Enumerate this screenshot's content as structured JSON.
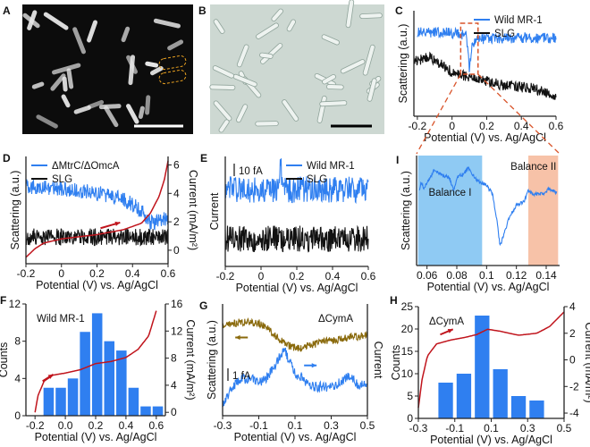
{
  "colors": {
    "blue": "#2f7ff0",
    "black": "#111111",
    "red": "#c0141c",
    "brown": "#8a6a0c",
    "bar": "#2f7ff0",
    "balance1": "#8fcaf3",
    "balance2": "#f7c2a8",
    "zoom_box": "#d9542a"
  },
  "chart_data": [
    {
      "panel": "A",
      "type": "image",
      "letter": "A",
      "background": "dark-field",
      "scale_bar": true,
      "highlight": "dashed-orange-outline"
    },
    {
      "panel": "B",
      "type": "image",
      "letter": "B",
      "background": "bright-field",
      "scale_bar": true
    },
    {
      "panel": "C",
      "type": "line",
      "letter": "C",
      "xlabel": "Potential (V) vs. Ag/AgCl",
      "ylabel": "Scattering (a.u.)",
      "xlim": [
        -0.22,
        0.6
      ],
      "xticks": [
        -0.2,
        0,
        0.2,
        0.4,
        0.6
      ],
      "xtick_labels": [
        "-0.2",
        "0",
        "0.2",
        "0.4",
        "0.6"
      ],
      "ylim": [
        0,
        10
      ],
      "legend": "top-right",
      "zoom_region_x": [
        0.05,
        0.15
      ],
      "series": [
        {
          "name": "Wild MR-1",
          "color": "blue",
          "noise": 0.5,
          "points": [
            [
              -0.2,
              8.0
            ],
            [
              0.0,
              7.9
            ],
            [
              0.08,
              7.7
            ],
            [
              0.095,
              6.0
            ],
            [
              0.1,
              3.8
            ],
            [
              0.11,
              6.2
            ],
            [
              0.13,
              7.3
            ],
            [
              0.3,
              7.4
            ],
            [
              0.6,
              7.4
            ]
          ]
        },
        {
          "name": "SLG",
          "color": "black",
          "noise": 0.5,
          "points": [
            [
              -0.22,
              5.2
            ],
            [
              -0.13,
              5.6
            ],
            [
              0.0,
              4.2
            ],
            [
              0.1,
              3.7
            ],
            [
              0.3,
              2.9
            ],
            [
              0.45,
              2.7
            ],
            [
              0.6,
              2.0
            ]
          ]
        }
      ]
    },
    {
      "panel": "D",
      "type": "line",
      "letter": "D",
      "xlabel": "Potential (V) vs. Ag/AgCl",
      "ylabel": "Scattering (a.u.)",
      "y2label": "Current (mA/m²)",
      "xlim": [
        -0.2,
        0.6
      ],
      "xticks": [
        -0.2,
        0,
        0.2,
        0.4,
        0.6
      ],
      "xtick_labels": [
        "-0.2",
        "0",
        "0.2",
        "0.4",
        "0.6"
      ],
      "ylim": [
        0,
        10
      ],
      "y2lim": [
        -0.95,
        6.6
      ],
      "y2ticks": [
        0,
        2,
        4,
        6
      ],
      "y2tick_labels": [
        "0",
        "2",
        "4",
        "6"
      ],
      "legend": "top-left",
      "arrow": {
        "from": [
          0.22,
          1.55
        ],
        "to": [
          0.33,
          1.95
        ],
        "axis": "y2"
      },
      "series": [
        {
          "name": "ΔMtrC/ΔOmcA",
          "color": "blue",
          "noise": 0.7,
          "points": [
            [
              -0.2,
              7.2
            ],
            [
              0.0,
              7.0
            ],
            [
              0.2,
              6.6
            ],
            [
              0.35,
              6.0
            ],
            [
              0.45,
              5.0
            ],
            [
              0.5,
              3.8
            ],
            [
              0.6,
              4.2
            ]
          ]
        },
        {
          "name": "SLG",
          "color": "black",
          "noise": 0.8,
          "points": [
            [
              -0.2,
              2.5
            ],
            [
              0.6,
              2.5
            ]
          ]
        },
        {
          "color": "red",
          "axis": "y2",
          "noise": 0,
          "points": [
            [
              -0.2,
              -0.5
            ],
            [
              -0.15,
              0.1
            ],
            [
              -0.1,
              0.5
            ],
            [
              0.0,
              0.8
            ],
            [
              0.2,
              1.1
            ],
            [
              0.35,
              1.45
            ],
            [
              0.45,
              1.9
            ],
            [
              0.5,
              2.6
            ],
            [
              0.55,
              3.8
            ],
            [
              0.58,
              5.0
            ],
            [
              0.6,
              6.3
            ]
          ]
        }
      ]
    },
    {
      "panel": "E",
      "type": "line",
      "letter": "E",
      "xlabel": "Potential (V) vs. Ag/AgCl",
      "ylabel": "Current",
      "xlim": [
        -0.2,
        0.6
      ],
      "xticks": [
        -0.2,
        0,
        0.2,
        0.4,
        0.6
      ],
      "xtick_labels": [
        "-0.2",
        "0",
        "0.2",
        "0.4",
        "0.6"
      ],
      "ylim": [
        0,
        10
      ],
      "legend": "top-right",
      "scale_bar_label": "10 fA",
      "series": [
        {
          "name": "Wild MR-1",
          "color": "blue",
          "noise": 1.2,
          "points": [
            [
              -0.2,
              7.0
            ],
            [
              0.104,
              7.0
            ],
            [
              0.11,
              9.8
            ],
            [
              0.116,
              7.0
            ],
            [
              0.6,
              7.0
            ]
          ]
        },
        {
          "name": "SLG",
          "color": "black",
          "noise": 1.2,
          "points": [
            [
              -0.2,
              2.5
            ],
            [
              0.6,
              2.5
            ]
          ]
        }
      ]
    },
    {
      "panel": "I",
      "type": "line",
      "letter": "I",
      "xlabel": "Potential (V) vs. Ag/AgCl",
      "ylabel": "Scattering (a.u.)",
      "xlim": [
        0.053,
        0.149
      ],
      "xticks": [
        0.06,
        0.08,
        0.1,
        0.12,
        0.14
      ],
      "xtick_labels": [
        "0.06",
        "0.08",
        "0.1",
        "0.12",
        "0.14"
      ],
      "ylim": [
        0,
        10
      ],
      "regions": [
        {
          "label": "Balance I",
          "x": [
            0.054,
            0.097
          ],
          "color": "balance1"
        },
        {
          "label": "Balance II",
          "x": [
            0.128,
            0.148
          ],
          "color": "balance2"
        }
      ],
      "series": [
        {
          "color": "blue",
          "noise": 0.15,
          "points": [
            [
              0.055,
              6.8
            ],
            [
              0.056,
              7.6
            ],
            [
              0.058,
              7.0
            ],
            [
              0.062,
              8.0
            ],
            [
              0.065,
              8.7
            ],
            [
              0.07,
              8.2
            ],
            [
              0.075,
              8.0
            ],
            [
              0.078,
              6.8
            ],
            [
              0.08,
              8.0
            ],
            [
              0.085,
              8.4
            ],
            [
              0.088,
              8.9
            ],
            [
              0.092,
              8.0
            ],
            [
              0.095,
              7.6
            ],
            [
              0.1,
              7.3
            ],
            [
              0.104,
              6.5
            ],
            [
              0.107,
              4.0
            ],
            [
              0.109,
              1.8
            ],
            [
              0.112,
              3.0
            ],
            [
              0.115,
              4.3
            ],
            [
              0.12,
              5.5
            ],
            [
              0.125,
              5.8
            ],
            [
              0.128,
              6.8
            ],
            [
              0.132,
              6.5
            ],
            [
              0.138,
              6.5
            ],
            [
              0.142,
              7.0
            ],
            [
              0.147,
              6.6
            ]
          ]
        }
      ]
    },
    {
      "panel": "F",
      "type": "bar",
      "letter": "F",
      "annotation": "Wild MR-1",
      "xlabel": "Potential (V) vs. Ag/AgCl",
      "ylabel": "Counts",
      "y2label": "Current (mA/m²)",
      "xlim": [
        -0.26,
        0.66
      ],
      "xticks": [
        -0.2,
        0,
        0.2,
        0.4,
        0.6
      ],
      "xtick_labels": [
        "-0.2",
        "0.0",
        "0.2",
        "0.4",
        "0.6"
      ],
      "ylim": [
        0,
        12
      ],
      "yticks": [
        0,
        4,
        8,
        12
      ],
      "ytick_labels": [
        "0",
        "4",
        "8",
        "12"
      ],
      "y2lim": [
        -0.5,
        16
      ],
      "y2ticks": [
        0,
        4,
        8,
        12,
        16
      ],
      "y2tick_labels": [
        "0",
        "4",
        "8",
        "12",
        "16"
      ],
      "bar_width": 0.068,
      "bins": [
        -0.11,
        -0.03,
        0.05,
        0.13,
        0.21,
        0.29,
        0.37,
        0.45,
        0.53,
        0.61
      ],
      "values": [
        3,
        3,
        4,
        9,
        11,
        8,
        7,
        3,
        1,
        1
      ],
      "arrow": {
        "from": [
          -0.15,
          4.6
        ],
        "to": [
          -0.08,
          5.6
        ],
        "axis": "y2"
      },
      "series": [
        {
          "color": "red",
          "axis": "y2",
          "noise": 0,
          "points": [
            [
              -0.2,
              0.0
            ],
            [
              -0.18,
              2.5
            ],
            [
              -0.14,
              4.6
            ],
            [
              -0.08,
              5.5
            ],
            [
              0.0,
              5.8
            ],
            [
              0.1,
              6.3
            ],
            [
              0.2,
              7.2
            ],
            [
              0.3,
              7.5
            ],
            [
              0.4,
              8.1
            ],
            [
              0.48,
              9.3
            ],
            [
              0.55,
              11.3
            ],
            [
              0.6,
              15.0
            ]
          ]
        }
      ]
    },
    {
      "panel": "G",
      "type": "line",
      "letter": "G",
      "annotation": "ΔCymA",
      "xlabel": "Potential (V) vs. Ag/AgCl",
      "ylabel": "Scattering (a.u.)",
      "y2label": "Current",
      "xlim": [
        -0.3,
        0.5
      ],
      "xticks": [
        -0.3,
        -0.1,
        0.1,
        0.3,
        0.5
      ],
      "xtick_labels": [
        "-0.3",
        "-0.1",
        "0.1",
        "0.3",
        "0.5"
      ],
      "ylim": [
        0,
        10
      ],
      "scale_bar_label": "1 fA",
      "arrows": [
        {
          "dir": "left",
          "at": [
            -0.22,
            7.0
          ],
          "color": "brown"
        },
        {
          "dir": "right",
          "at": [
            0.16,
            4.5
          ],
          "color": "blue"
        }
      ],
      "series": [
        {
          "color": "brown",
          "noise": 0.35,
          "points": [
            [
              -0.3,
              8.0
            ],
            [
              -0.2,
              8.4
            ],
            [
              -0.1,
              8.3
            ],
            [
              -0.05,
              7.8
            ],
            [
              0.05,
              6.3
            ],
            [
              0.12,
              6.0
            ],
            [
              0.25,
              6.6
            ],
            [
              0.4,
              7.0
            ],
            [
              0.5,
              7.2
            ]
          ]
        },
        {
          "color": "blue",
          "noise": 0.45,
          "points": [
            [
              -0.3,
              0.8
            ],
            [
              -0.25,
              2.6
            ],
            [
              -0.2,
              3.3
            ],
            [
              -0.12,
              3.2
            ],
            [
              -0.07,
              3.1
            ],
            [
              -0.02,
              4.3
            ],
            [
              0.04,
              5.9
            ],
            [
              0.1,
              3.8
            ],
            [
              0.2,
              2.6
            ],
            [
              0.32,
              2.6
            ],
            [
              0.4,
              3.6
            ],
            [
              0.44,
              2.8
            ],
            [
              0.5,
              2.8
            ]
          ]
        }
      ]
    },
    {
      "panel": "H",
      "type": "bar",
      "letter": "H",
      "annotation": "ΔCymA",
      "xlabel": "Potential (V) vs. Ag/AgCl",
      "ylabel": "Counts",
      "y2label": "Current (mA/m²)",
      "xlim": [
        -0.3,
        0.5
      ],
      "xticks": [
        -0.3,
        -0.1,
        0.1,
        0.3,
        0.5
      ],
      "xtick_labels": [
        "-0.3",
        "-0.1",
        "0.1",
        "0.3",
        "0.5"
      ],
      "ylim": [
        0,
        25
      ],
      "yticks": [
        0,
        5,
        10,
        15,
        20,
        25
      ],
      "ytick_labels": [
        "0",
        "5",
        "10",
        "15",
        "20",
        "25"
      ],
      "y2lim": [
        -4.4,
        4
      ],
      "y2ticks": [
        -4,
        -2,
        0,
        2,
        4
      ],
      "y2tick_labels": [
        "-4",
        "-2",
        "0",
        "2",
        "4"
      ],
      "bar_width": 0.08,
      "bins": [
        -0.15,
        -0.05,
        0.05,
        0.15,
        0.25,
        0.35
      ],
      "values": [
        8,
        10,
        23,
        11,
        5,
        4
      ],
      "arrow": {
        "from": [
          -0.18,
          1.9
        ],
        "to": [
          -0.11,
          2.3
        ],
        "axis": "y2"
      },
      "series": [
        {
          "color": "red",
          "axis": "y2",
          "noise": 0,
          "points": [
            [
              -0.3,
              -3.6
            ],
            [
              -0.28,
              -1.5
            ],
            [
              -0.25,
              0.3
            ],
            [
              -0.2,
              1.2
            ],
            [
              -0.12,
              1.5
            ],
            [
              -0.04,
              1.7
            ],
            [
              0.02,
              1.9
            ],
            [
              0.08,
              2.3
            ],
            [
              0.15,
              2.15
            ],
            [
              0.25,
              1.85
            ],
            [
              0.35,
              2.0
            ],
            [
              0.42,
              2.5
            ],
            [
              0.5,
              3.6
            ]
          ]
        }
      ]
    }
  ]
}
